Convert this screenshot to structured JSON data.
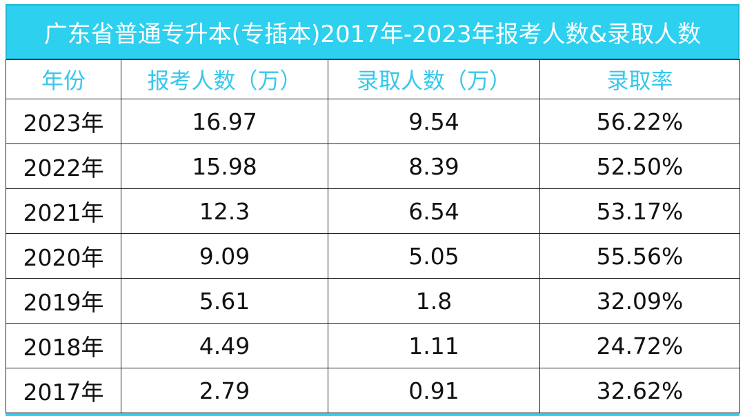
{
  "title": "广东省普通专升本(专插本)2017年-2023年报考人数&录取人数",
  "table": {
    "headers": [
      "年份",
      "报考人数（万）",
      "录取人数（万）",
      "录取率"
    ],
    "rows": [
      [
        "2023年",
        "16.97",
        "9.54",
        "56.22%"
      ],
      [
        "2022年",
        "15.98",
        "8.39",
        "52.50%"
      ],
      [
        "2021年",
        "12.3",
        "6.54",
        "53.17%"
      ],
      [
        "2020年",
        "9.09",
        "5.05",
        "55.56%"
      ],
      [
        "2019年",
        "5.61",
        "1.8",
        "32.09%"
      ],
      [
        "2018年",
        "4.49",
        "1.11",
        "24.72%"
      ],
      [
        "2017年",
        "2.79",
        "0.91",
        "32.62%"
      ]
    ]
  },
  "colors": {
    "title_background": "#2dd0ee",
    "header_text": "#36c8ec",
    "border": "#222222"
  }
}
